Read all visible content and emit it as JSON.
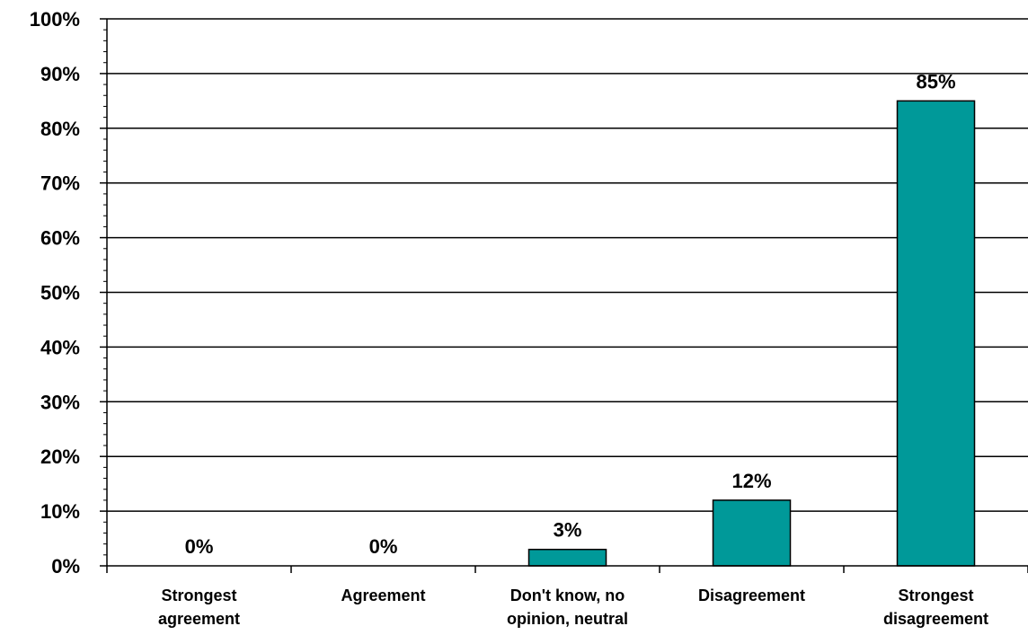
{
  "chart_data": {
    "type": "bar",
    "categories": [
      [
        "Strongest",
        "agreement"
      ],
      [
        "Agreement"
      ],
      [
        "Don't know, no",
        "opinion, neutral"
      ],
      [
        "Disagreement"
      ],
      [
        "Strongest",
        "disagreement"
      ]
    ],
    "values": [
      0,
      0,
      3,
      12,
      85
    ],
    "data_labels": [
      "0%",
      "0%",
      "3%",
      "12%",
      "85%"
    ],
    "ylim": [
      0,
      100
    ],
    "yticks": [
      0,
      10,
      20,
      30,
      40,
      50,
      60,
      70,
      80,
      90,
      100
    ],
    "ytick_labels": [
      "0%",
      "10%",
      "20%",
      "30%",
      "40%",
      "50%",
      "60%",
      "70%",
      "80%",
      "90%",
      "100%"
    ],
    "grid": true,
    "bar_color": "#009999",
    "title": "",
    "xlabel": "",
    "ylabel": ""
  }
}
